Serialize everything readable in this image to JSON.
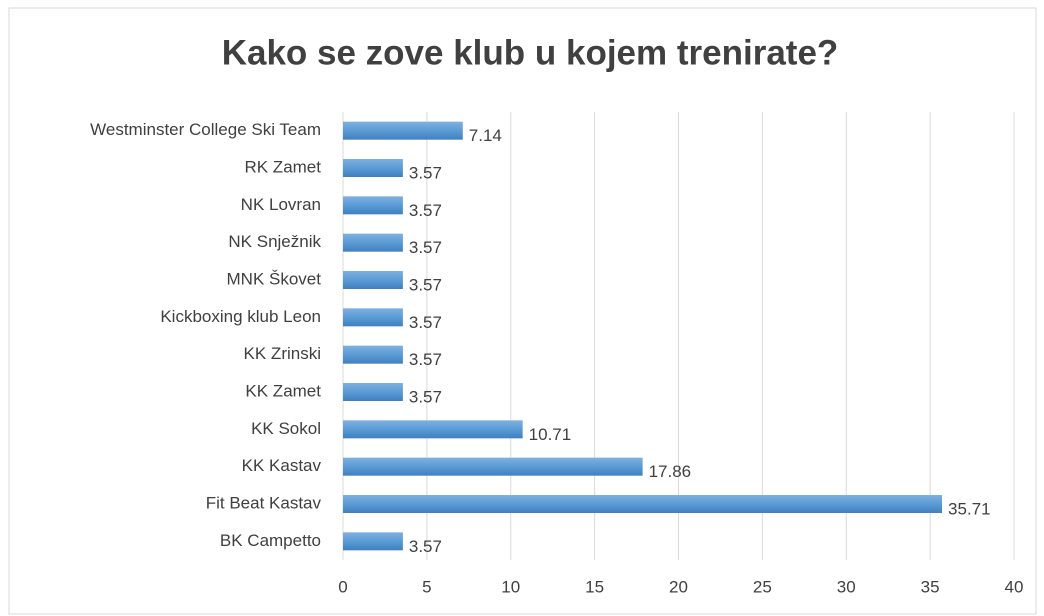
{
  "chart_data": {
    "type": "bar",
    "orientation": "horizontal",
    "title": "Kako se zove klub u kojem trenirate?",
    "categories": [
      "Westminster College Ski Team",
      "RK Zamet",
      "NK Lovran",
      "NK Snježnik",
      "MNK Škovet",
      "Kickboxing klub Leon",
      "KK Zrinski",
      "KK Zamet",
      "KK Sokol",
      "KK Kastav",
      "Fit Beat Kastav",
      "BK Campetto"
    ],
    "values": [
      7.14,
      3.57,
      3.57,
      3.57,
      3.57,
      3.57,
      3.57,
      3.57,
      10.71,
      17.86,
      35.71,
      3.57
    ],
    "color": "#5b9bd5",
    "xlim": [
      0,
      40
    ],
    "xticks": [
      0,
      5,
      10,
      15,
      20,
      25,
      30,
      35,
      40
    ],
    "grid": true
  }
}
